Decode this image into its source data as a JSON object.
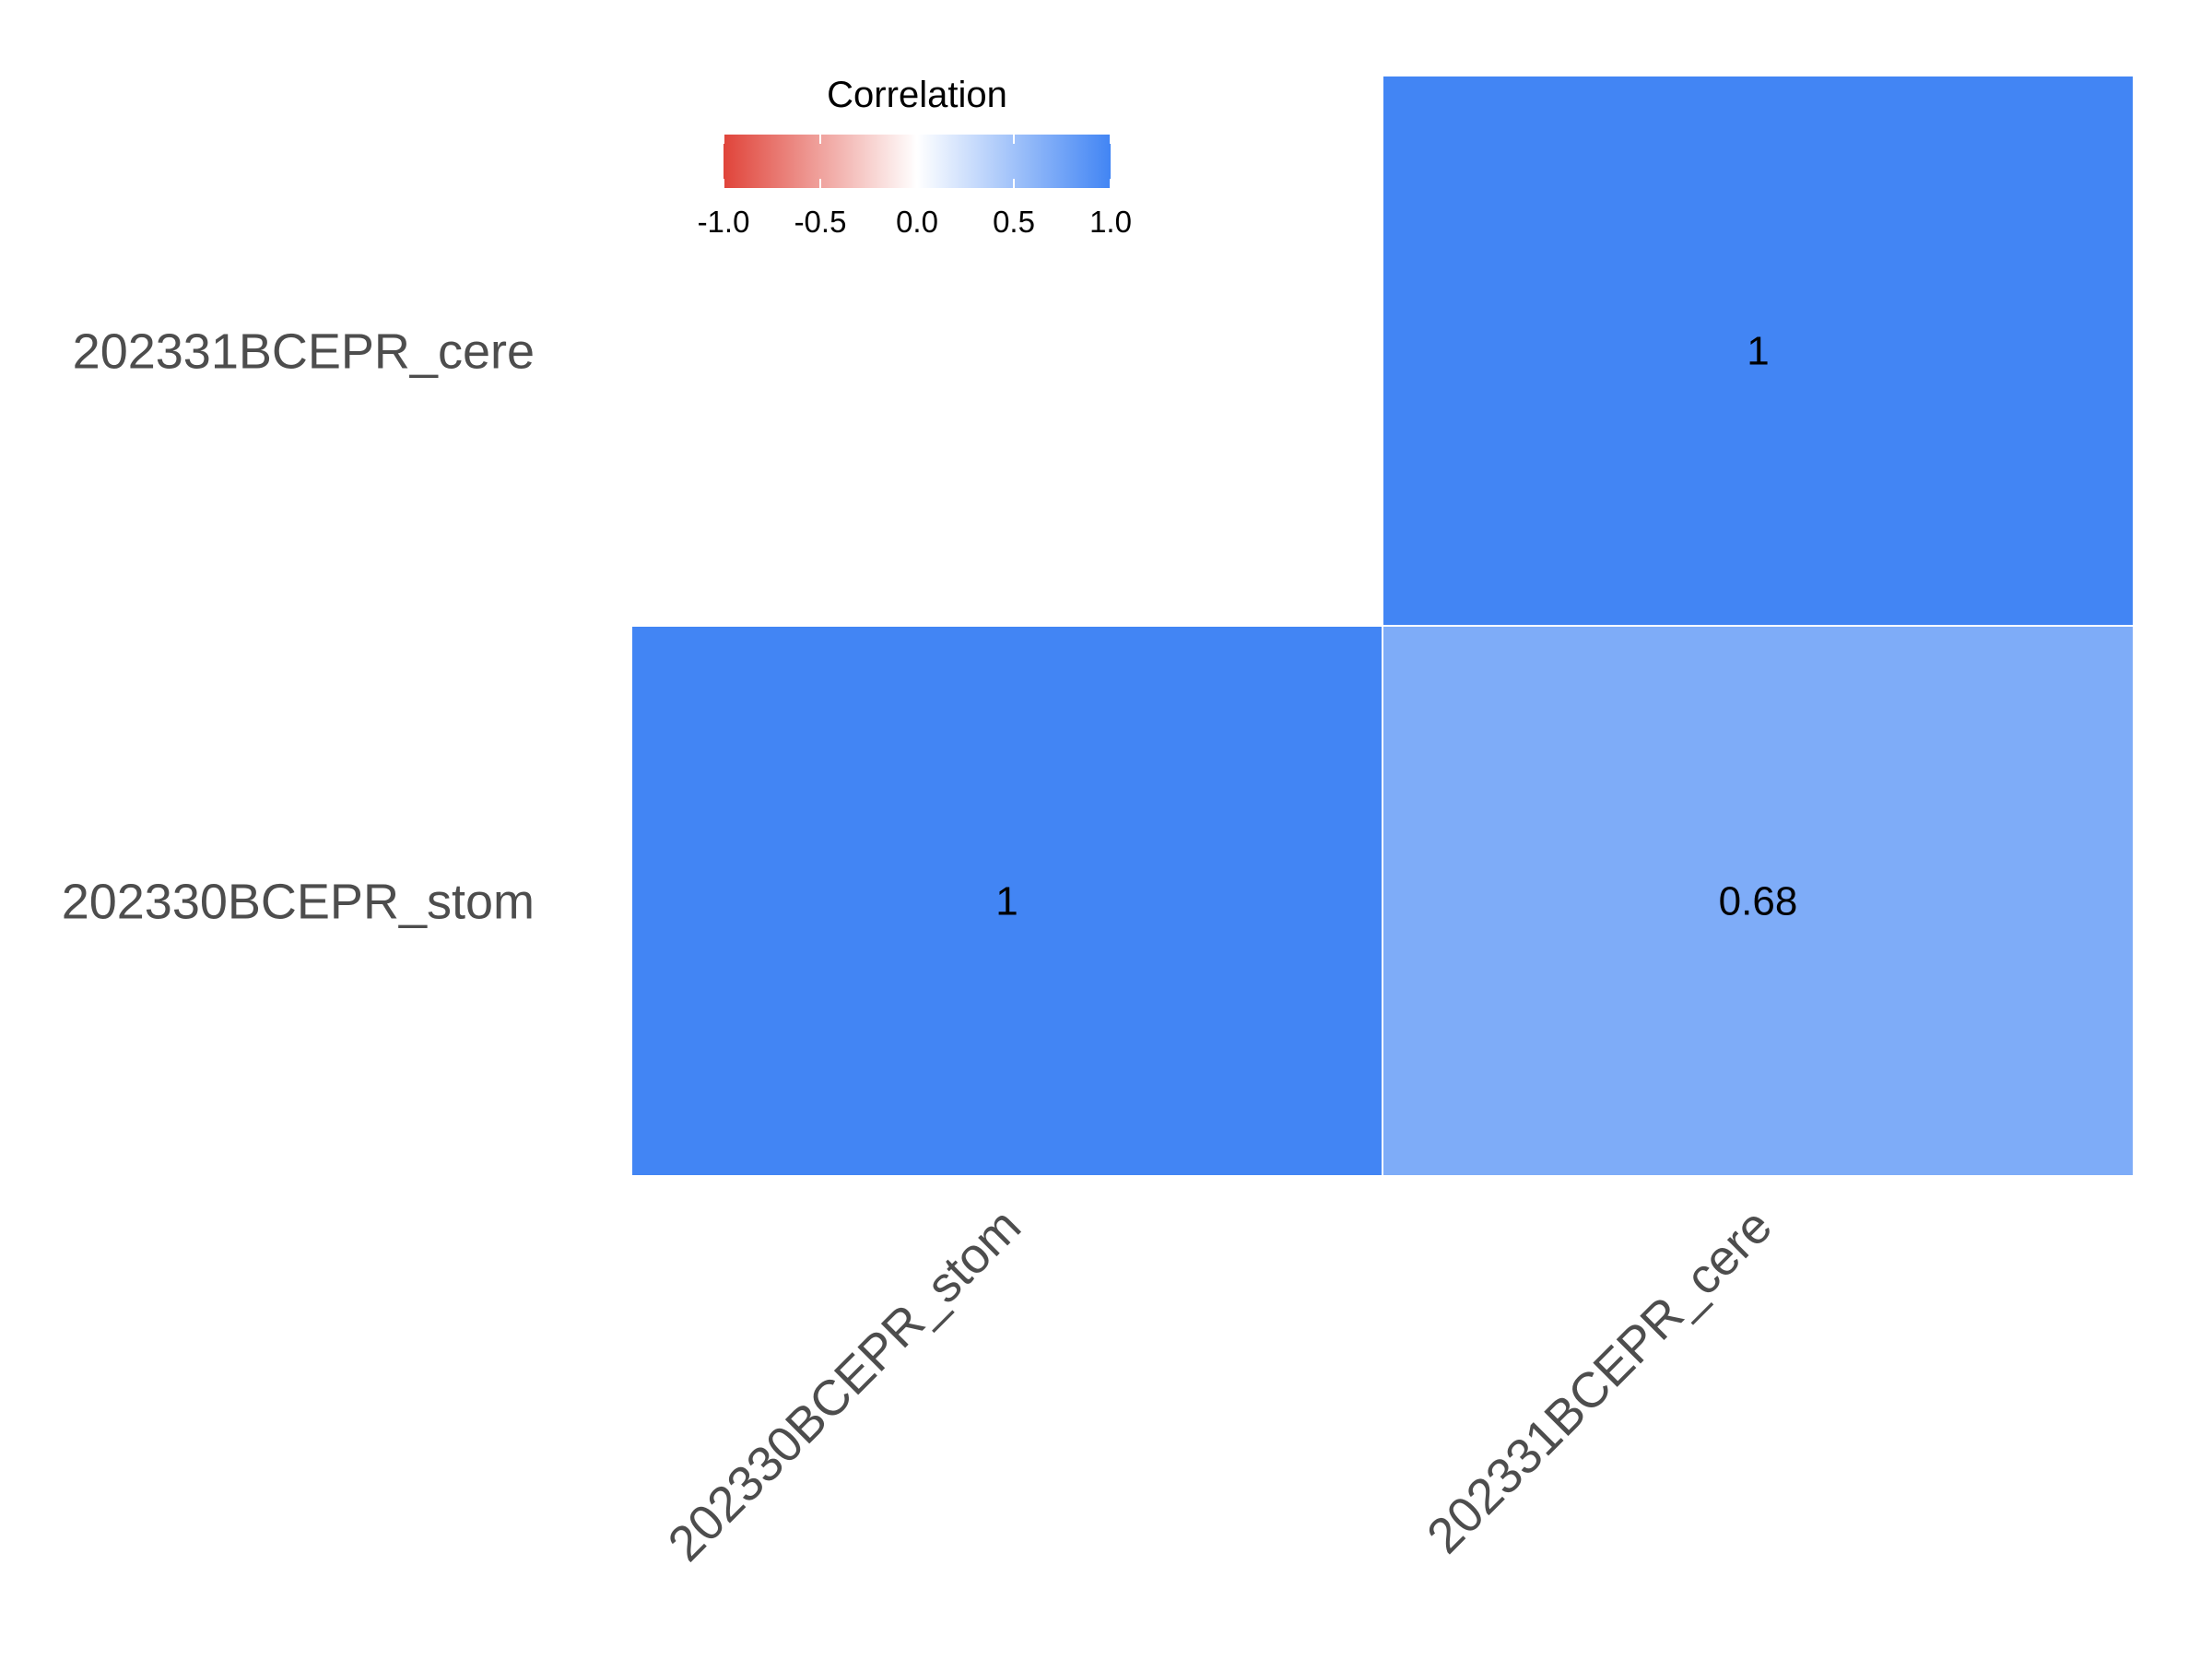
{
  "chart_data": {
    "type": "heatmap",
    "title": "",
    "xlabel": "",
    "ylabel": "",
    "x_categories": [
      "202330BCEPR_stom",
      "202331BCEPR_cere"
    ],
    "y_categories": [
      "202331BCEPR_cere",
      "202330BCEPR_stom"
    ],
    "cells": [
      {
        "x": "202331BCEPR_cere",
        "y": "202331BCEPR_cere",
        "value": 1,
        "label": "1"
      },
      {
        "x": "202330BCEPR_stom",
        "y": "202330BCEPR_stom",
        "value": 1,
        "label": "1"
      },
      {
        "x": "202331BCEPR_cere",
        "y": "202330BCEPR_stom",
        "value": 0.68,
        "label": "0.68"
      }
    ],
    "legend": {
      "title": "Correlation",
      "position": "top",
      "range": [
        -1,
        1
      ],
      "ticks": [
        -1.0,
        -0.5,
        0.0,
        0.5,
        1.0
      ],
      "tick_labels": [
        "-1.0",
        "-0.5",
        "0.0",
        "0.5",
        "1.0"
      ]
    },
    "colors": {
      "low": "#e0443a",
      "mid": "#ffffff",
      "high": "#4285f4",
      "cell_border": "#ffffff"
    }
  }
}
